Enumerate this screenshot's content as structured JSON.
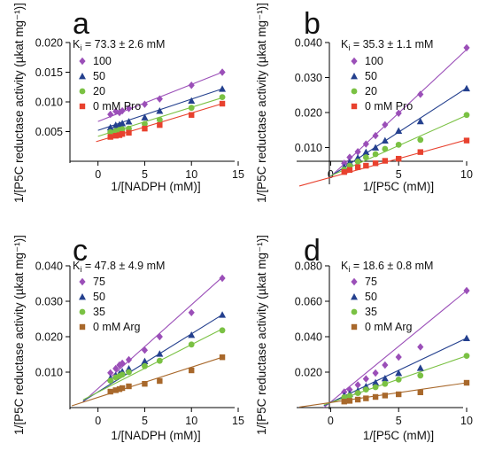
{
  "chart_data": [
    {
      "type": "scatter",
      "panel": "a",
      "ki": {
        "prefix": "K",
        "sub": "i",
        "text": " = 73.3 ± 2.6 mM"
      },
      "xlabel": "1/[NADPH (mM)]",
      "ylabel": "1/[P5C reductase activity (µkat mg⁻¹)]",
      "xlim": [
        -3,
        15
      ],
      "ylim": [
        0,
        0.02
      ],
      "xticks": [
        0,
        5,
        10,
        15
      ],
      "yticks": [
        0.005,
        0.01,
        0.015,
        0.02
      ],
      "ytick_labels": [
        "0.005",
        "0.010",
        "0.015",
        "0.020"
      ],
      "x": [
        1.33,
        1.9,
        2.3,
        2.6,
        3.3,
        5,
        6.6,
        10,
        13.3
      ],
      "series": [
        {
          "name": "100",
          "color": "#9b4fb8",
          "marker": "diamond",
          "values": [
            0.0079,
            0.0084,
            0.0082,
            0.0085,
            0.0089,
            0.0096,
            0.0105,
            0.0128,
            0.015
          ],
          "fit": {
            "x": [
              0,
              13.3
            ],
            "y": [
              0.0067,
              0.015
            ]
          }
        },
        {
          "name": "50",
          "color": "#24408e",
          "marker": "triangle",
          "values": [
            0.0057,
            0.0061,
            0.0062,
            0.0064,
            0.0067,
            0.0074,
            0.0085,
            0.0102,
            0.0122
          ],
          "fit": {
            "x": [
              0,
              13.3
            ],
            "y": [
              0.0052,
              0.0122
            ]
          }
        },
        {
          "name": "20",
          "color": "#7ac143",
          "marker": "circle",
          "values": [
            0.0049,
            0.0051,
            0.0053,
            0.0054,
            0.0055,
            0.0063,
            0.007,
            0.009,
            0.0108
          ],
          "fit": {
            "x": [
              0,
              13.3
            ],
            "y": [
              0.0042,
              0.0107
            ]
          }
        },
        {
          "name": "0 mM Pro",
          "color": "#e8412e",
          "marker": "square",
          "values": [
            0.0041,
            0.0043,
            0.0044,
            0.0046,
            0.0048,
            0.0055,
            0.0061,
            0.0078,
            0.0097
          ],
          "fit": {
            "x": [
              -0.2,
              13.3
            ],
            "y": [
              0.0033,
              0.0097
            ]
          }
        }
      ]
    },
    {
      "type": "scatter",
      "panel": "b",
      "ki": {
        "prefix": "K",
        "sub": "i",
        "text": " = 35.3 ± 1.1 mM"
      },
      "xlabel": "1/[P5C (mM)]",
      "ylabel": "1/[P5C reductase activity (µkat mg⁻¹)]",
      "xlim": [
        -2.5,
        10
      ],
      "ylim": [
        0,
        0.04
      ],
      "xticks": [
        0,
        5,
        10
      ],
      "yticks": [
        0.01,
        0.02,
        0.03,
        0.04
      ],
      "ytick_labels": [
        "0.010",
        "0.020",
        "0.030",
        "0.040"
      ],
      "x": [
        1,
        1.4,
        2,
        2.6,
        3.3,
        4,
        5,
        6.6,
        10
      ],
      "series": [
        {
          "name": "100",
          "color": "#9b4fb8",
          "marker": "diamond",
          "values": [
            0.0055,
            0.0072,
            0.0088,
            0.011,
            0.0134,
            0.0165,
            0.0198,
            0.0252,
            0.0385
          ],
          "fit": {
            "x": [
              0,
              10
            ],
            "y": [
              0.0017,
              0.038
            ]
          }
        },
        {
          "name": "50",
          "color": "#24408e",
          "marker": "triangle",
          "values": [
            0.0044,
            0.0058,
            0.0071,
            0.0087,
            0.01,
            0.012,
            0.0148,
            0.0175,
            0.0269
          ],
          "fit": {
            "x": [
              0,
              10
            ],
            "y": [
              0.0018,
              0.027
            ]
          }
        },
        {
          "name": "20",
          "color": "#7ac143",
          "marker": "circle",
          "values": [
            0.0037,
            0.0048,
            0.006,
            0.0072,
            0.0081,
            0.0096,
            0.0108,
            0.0122,
            0.0193
          ],
          "fit": {
            "x": [
              0,
              10
            ],
            "y": [
              0.0019,
              0.0192
            ]
          }
        },
        {
          "name": "0 mM Pro",
          "color": "#e8412e",
          "marker": "square",
          "values": [
            0.003,
            0.0036,
            0.0044,
            0.0048,
            0.0055,
            0.0062,
            0.0068,
            0.0087,
            0.012
          ],
          "fit": {
            "x": [
              -2.3,
              10
            ],
            "y": [
              -0.001,
              0.0122
            ]
          }
        }
      ]
    },
    {
      "type": "scatter",
      "panel": "c",
      "ki": {
        "prefix": "K",
        "sub": "i",
        "text": " = 47.8 ± 4.9 mM"
      },
      "xlabel": "1/[NADPH (mM)]",
      "ylabel": "1/[P5C reductase activity (µkat mg⁻¹)]",
      "xlim": [
        -3,
        15
      ],
      "ylim": [
        0,
        0.04
      ],
      "xticks": [
        0,
        5,
        10,
        15
      ],
      "yticks": [
        0.01,
        0.02,
        0.03,
        0.04
      ],
      "ytick_labels": [
        "0.010",
        "0.020",
        "0.030",
        "0.040"
      ],
      "x": [
        1.33,
        1.9,
        2.3,
        2.6,
        3.3,
        5,
        6.6,
        10,
        13.3
      ],
      "series": [
        {
          "name": "75",
          "color": "#9b4fb8",
          "marker": "diamond",
          "values": [
            0.0098,
            0.011,
            0.012,
            0.0125,
            0.0135,
            0.0162,
            0.02,
            0.0268,
            0.0365
          ],
          "fit": {
            "x": [
              -1.6,
              13.3
            ],
            "y": [
              0.0016,
              0.0368
            ]
          }
        },
        {
          "name": "50",
          "color": "#24408e",
          "marker": "triangle",
          "values": [
            0.0083,
            0.0091,
            0.0096,
            0.0102,
            0.011,
            0.0131,
            0.0152,
            0.0205,
            0.0262
          ],
          "fit": {
            "x": [
              -1.6,
              13.3
            ],
            "y": [
              0.0018,
              0.0262
            ]
          }
        },
        {
          "name": "35",
          "color": "#7ac143",
          "marker": "circle",
          "values": [
            0.0076,
            0.0085,
            0.0089,
            0.0093,
            0.01,
            0.0117,
            0.0132,
            0.0178,
            0.0218
          ],
          "fit": {
            "x": [
              -1.6,
              13.3
            ],
            "y": [
              0.0022,
              0.0222
            ]
          }
        },
        {
          "name": "0 mM Arg",
          "color": "#a8682b",
          "marker": "square",
          "values": [
            0.0045,
            0.0049,
            0.0052,
            0.0055,
            0.006,
            0.0067,
            0.0075,
            0.0105,
            0.0142
          ],
          "fit": {
            "x": [
              -2.8,
              13.3
            ],
            "y": [
              0.0005,
              0.0142
            ]
          }
        }
      ]
    },
    {
      "type": "scatter",
      "panel": "d",
      "ki": {
        "prefix": "K",
        "sub": "i",
        "text": " = 18.6 ± 0.8 mM"
      },
      "xlabel": "1/[P5C (mM)]",
      "ylabel": "1/[P5C reductase activity (µkat mg⁻¹)]",
      "xlim": [
        -2.5,
        10
      ],
      "ylim": [
        0,
        0.08
      ],
      "xticks": [
        0,
        5,
        10
      ],
      "yticks": [
        0.02,
        0.04,
        0.06,
        0.08
      ],
      "ytick_labels": [
        "0.020",
        "0.040",
        "0.060",
        "0.080"
      ],
      "x": [
        1,
        1.4,
        2,
        2.6,
        3.3,
        4,
        5,
        6.6,
        10
      ],
      "series": [
        {
          "name": "75",
          "color": "#9b4fb8",
          "marker": "diamond",
          "values": [
            0.0088,
            0.0101,
            0.0128,
            0.0162,
            0.0195,
            0.024,
            0.0285,
            0.0342,
            0.066
          ],
          "fit": {
            "x": [
              -0.5,
              10
            ],
            "y": [
              0,
              0.066
            ]
          }
        },
        {
          "name": "50",
          "color": "#24408e",
          "marker": "triangle",
          "values": [
            0.0068,
            0.0078,
            0.0095,
            0.012,
            0.0142,
            0.0165,
            0.0195,
            0.0224,
            0.0392
          ],
          "fit": {
            "x": [
              -0.5,
              10
            ],
            "y": [
              0.001,
              0.0392
            ]
          }
        },
        {
          "name": "35",
          "color": "#7ac143",
          "marker": "circle",
          "values": [
            0.0058,
            0.0066,
            0.0082,
            0.0102,
            0.0115,
            0.0134,
            0.0158,
            0.0181,
            0.0292
          ],
          "fit": {
            "x": [
              -0.5,
              10
            ],
            "y": [
              0.0015,
              0.0292
            ]
          }
        },
        {
          "name": "0 mM Arg",
          "color": "#a8682b",
          "marker": "square",
          "values": [
            0.0034,
            0.0038,
            0.0045,
            0.0052,
            0.006,
            0.0068,
            0.0075,
            0.0086,
            0.014
          ],
          "fit": {
            "x": [
              -2.3,
              10
            ],
            "y": [
              0.0003,
              0.014
            ]
          }
        }
      ]
    }
  ]
}
